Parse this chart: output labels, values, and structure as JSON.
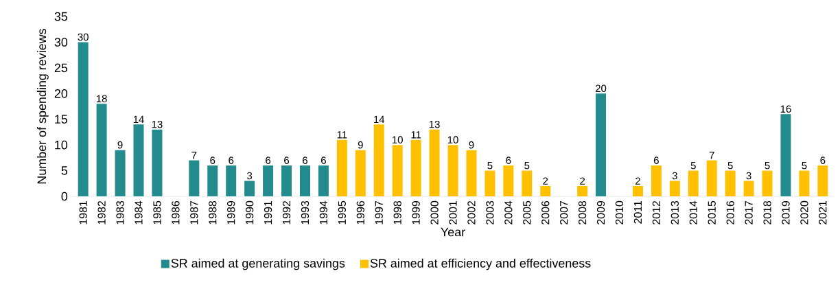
{
  "chart_data": {
    "type": "bar",
    "xlabel": "Year",
    "ylabel": "Number of spending reviews",
    "categories": [
      "1981",
      "1982",
      "1983",
      "1984",
      "1985",
      "1986",
      "1987",
      "1988",
      "1989",
      "1990",
      "1991",
      "1992",
      "1993",
      "1994",
      "1995",
      "1996",
      "1997",
      "1998",
      "1999",
      "2000",
      "2001",
      "2002",
      "2003",
      "2004",
      "2005",
      "2006",
      "2007",
      "2008",
      "2009",
      "2010",
      "2011",
      "2012",
      "2013",
      "2014",
      "2015",
      "2016",
      "2017",
      "2018",
      "2019",
      "2020",
      "2021"
    ],
    "series": [
      {
        "name": "SR aimed at generating savings",
        "color": "#238a8d",
        "values": [
          30,
          18,
          9,
          14,
          13,
          null,
          7,
          6,
          6,
          3,
          6,
          6,
          6,
          6,
          null,
          null,
          null,
          null,
          null,
          null,
          null,
          null,
          null,
          null,
          null,
          null,
          null,
          null,
          20,
          null,
          null,
          null,
          null,
          null,
          null,
          null,
          null,
          null,
          16,
          null,
          null
        ],
        "value_labels": [
          "30",
          "18",
          "9",
          "14",
          "13",
          null,
          "7",
          "6",
          "6",
          "3",
          "6",
          "6",
          "6",
          "6",
          null,
          null,
          null,
          null,
          null,
          null,
          null,
          null,
          null,
          null,
          null,
          null,
          null,
          null,
          "20",
          null,
          null,
          null,
          null,
          null,
          null,
          null,
          null,
          null,
          "16",
          null,
          null
        ]
      },
      {
        "name": "SR aimed at efficiency and effectiveness",
        "color": "#ffc000",
        "values": [
          null,
          null,
          null,
          null,
          null,
          null,
          null,
          null,
          null,
          null,
          null,
          null,
          null,
          null,
          11,
          9,
          14,
          10,
          11,
          13,
          10,
          9,
          5,
          6,
          5,
          2,
          null,
          2,
          null,
          null,
          2,
          6,
          3,
          5,
          7,
          5,
          3,
          5,
          null,
          5,
          6
        ],
        "value_labels": [
          null,
          null,
          null,
          null,
          null,
          null,
          null,
          null,
          null,
          null,
          null,
          null,
          null,
          null,
          "11",
          "9",
          "14",
          "10",
          "11",
          "13",
          "10",
          "9",
          "5",
          "6",
          "5",
          "2",
          null,
          "2",
          null,
          null,
          "2",
          "6",
          "3",
          "5",
          "7",
          "5",
          "3",
          "5",
          null,
          "5",
          "6"
        ]
      }
    ],
    "ylim": [
      0,
      35
    ],
    "yticks": [
      0,
      5,
      10,
      15,
      20,
      25,
      30,
      35
    ],
    "legend": "bottom",
    "grid": false
  }
}
